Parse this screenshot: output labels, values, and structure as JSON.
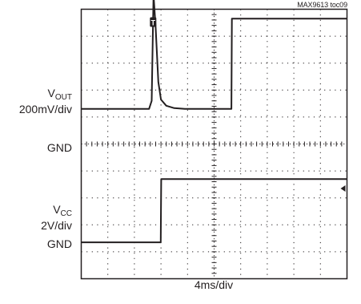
{
  "doc_id": "MAX9613 toc09",
  "labels": {
    "vout_main": "V",
    "vout_sub": "OUT",
    "vout_scale": "200mV/div",
    "gnd_top": "GND",
    "vcc_main": "V",
    "vcc_sub": "CC",
    "vcc_scale": "2V/div",
    "gnd_bottom": "GND",
    "xlabel": "4ms/div"
  },
  "chart_data": {
    "type": "line",
    "title": "",
    "xlabel": "4ms/div",
    "ylabel": "",
    "grid": true,
    "x_divisions": 10,
    "y_divisions": 10,
    "xlim": [
      0,
      10
    ],
    "ylim": [
      0,
      10
    ],
    "trigger_marker": "T",
    "series": [
      {
        "name": "VOUT",
        "scale": "200mV/div",
        "ground_div": 6.3,
        "x": [
          0,
          2.0,
          2.55,
          2.65,
          2.72,
          2.8,
          2.9,
          3.0,
          3.2,
          3.5,
          3.9,
          5.65,
          5.67,
          10
        ],
        "y": [
          0,
          0,
          0,
          0.3,
          4.25,
          3.0,
          1.0,
          0.35,
          0.12,
          0.03,
          0,
          0,
          3.35,
          3.35
        ]
      },
      {
        "name": "VCC",
        "scale": "2V/div",
        "ground_div": 1.35,
        "x": [
          0,
          2.99,
          3.01,
          10
        ],
        "y": [
          0,
          0,
          2.35,
          2.35
        ]
      }
    ]
  }
}
